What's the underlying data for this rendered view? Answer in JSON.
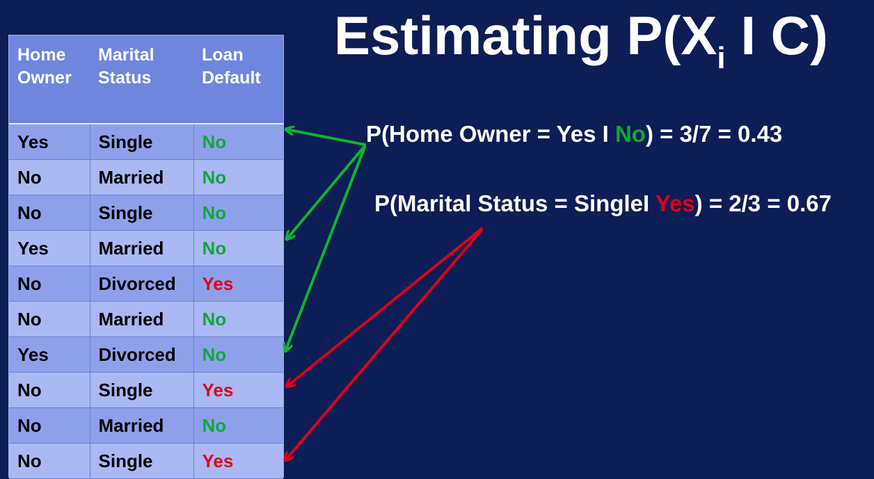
{
  "title": {
    "main": "Estimating P(X",
    "subscript": "i",
    "tail": " I C)"
  },
  "table": {
    "headers": [
      [
        "Home",
        "Owner"
      ],
      [
        "Marital",
        "Status"
      ],
      [
        "Loan",
        "Default"
      ]
    ],
    "rows": [
      [
        "Yes",
        "Single",
        "No"
      ],
      [
        "No",
        "Married",
        "No"
      ],
      [
        "No",
        "Single",
        "No"
      ],
      [
        "Yes",
        "Married",
        "No"
      ],
      [
        "No",
        "Divorced",
        "Yes"
      ],
      [
        "No",
        "Married",
        "No"
      ],
      [
        "Yes",
        "Divorced",
        "No"
      ],
      [
        "No",
        "Single",
        "Yes"
      ],
      [
        "No",
        "Married",
        "No"
      ],
      [
        "No",
        "Single",
        "Yes"
      ]
    ]
  },
  "equations": [
    {
      "prefix": "P(Home Owner = Yes I ",
      "highlight": "No",
      "suffix": ") = 3/7 = 0.43",
      "color": "#0fa83a"
    },
    {
      "prefix": "P(Marital Status = SingleI ",
      "highlight": "Yes",
      "suffix": ") = 2/3 = 0.67",
      "color": "#e0001a"
    }
  ],
  "colors": {
    "background": "#0d1d55",
    "no": "#0fa83a",
    "yes": "#e0001a",
    "arrow_green": "#0fb32f",
    "arrow_red": "#e0001a"
  }
}
